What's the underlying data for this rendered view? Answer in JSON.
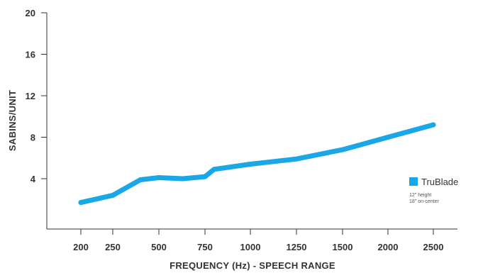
{
  "chart_data": {
    "type": "line",
    "title": "",
    "xlabel": "FREQUENCY (Hz) - SPEECH RANGE",
    "ylabel": "SABINS/UNIT",
    "x_ticks": [
      200,
      250,
      500,
      750,
      1000,
      1250,
      1500,
      2000,
      2500
    ],
    "y_ticks": [
      4,
      8,
      12,
      16,
      20
    ],
    "ylim": [
      0,
      20
    ],
    "grid": false,
    "legend": "right",
    "series": [
      {
        "name": "TruBlade",
        "color": "#1aa7e8",
        "x": [
          200,
          250,
          400,
          500,
          630,
          750,
          800,
          1000,
          1250,
          1500,
          2000,
          2500
        ],
        "y": [
          1.7,
          2.4,
          3.9,
          4.1,
          4.0,
          4.2,
          4.9,
          5.4,
          5.9,
          6.8,
          8.0,
          9.2
        ]
      }
    ],
    "legend_notes": [
      "12\" height",
      "18\" on-center"
    ]
  }
}
